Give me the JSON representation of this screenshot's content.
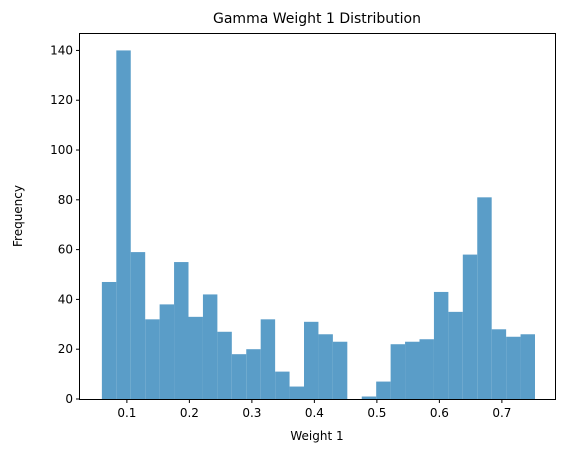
{
  "chart_data": {
    "type": "bar",
    "title": "Gamma Weight 1 Distribution",
    "xlabel": "Weight 1",
    "ylabel": "Frequency",
    "xlim": [
      0.025,
      0.785
    ],
    "ylim": [
      0,
      147
    ],
    "bin_edges": [
      0.06,
      0.0831,
      0.1062,
      0.1293,
      0.1524,
      0.1755,
      0.1986,
      0.2217,
      0.2448,
      0.2679,
      0.291,
      0.3141,
      0.3372,
      0.3603,
      0.3834,
      0.4065,
      0.4296,
      0.4527,
      0.4758,
      0.4989,
      0.522,
      0.5451,
      0.5682,
      0.5913,
      0.6144,
      0.6375,
      0.6606,
      0.6837,
      0.7068,
      0.7299,
      0.753
    ],
    "values": [
      47,
      140,
      59,
      32,
      38,
      55,
      33,
      42,
      27,
      18,
      20,
      32,
      11,
      5,
      31,
      26,
      23,
      0,
      1,
      7,
      22,
      23,
      24,
      43,
      35,
      58,
      81,
      28,
      25,
      26
    ],
    "x_ticks": [
      0.1,
      0.2,
      0.3,
      0.4,
      0.5,
      0.6,
      0.7
    ],
    "x_tick_labels": [
      "0.1",
      "0.2",
      "0.3",
      "0.4",
      "0.5",
      "0.6",
      "0.7"
    ],
    "y_ticks": [
      0,
      20,
      40,
      60,
      80,
      100,
      120,
      140
    ],
    "y_tick_labels": [
      "0",
      "20",
      "40",
      "60",
      "80",
      "100",
      "120",
      "140"
    ],
    "grid": false,
    "bar_color": "#5a9dc8"
  }
}
